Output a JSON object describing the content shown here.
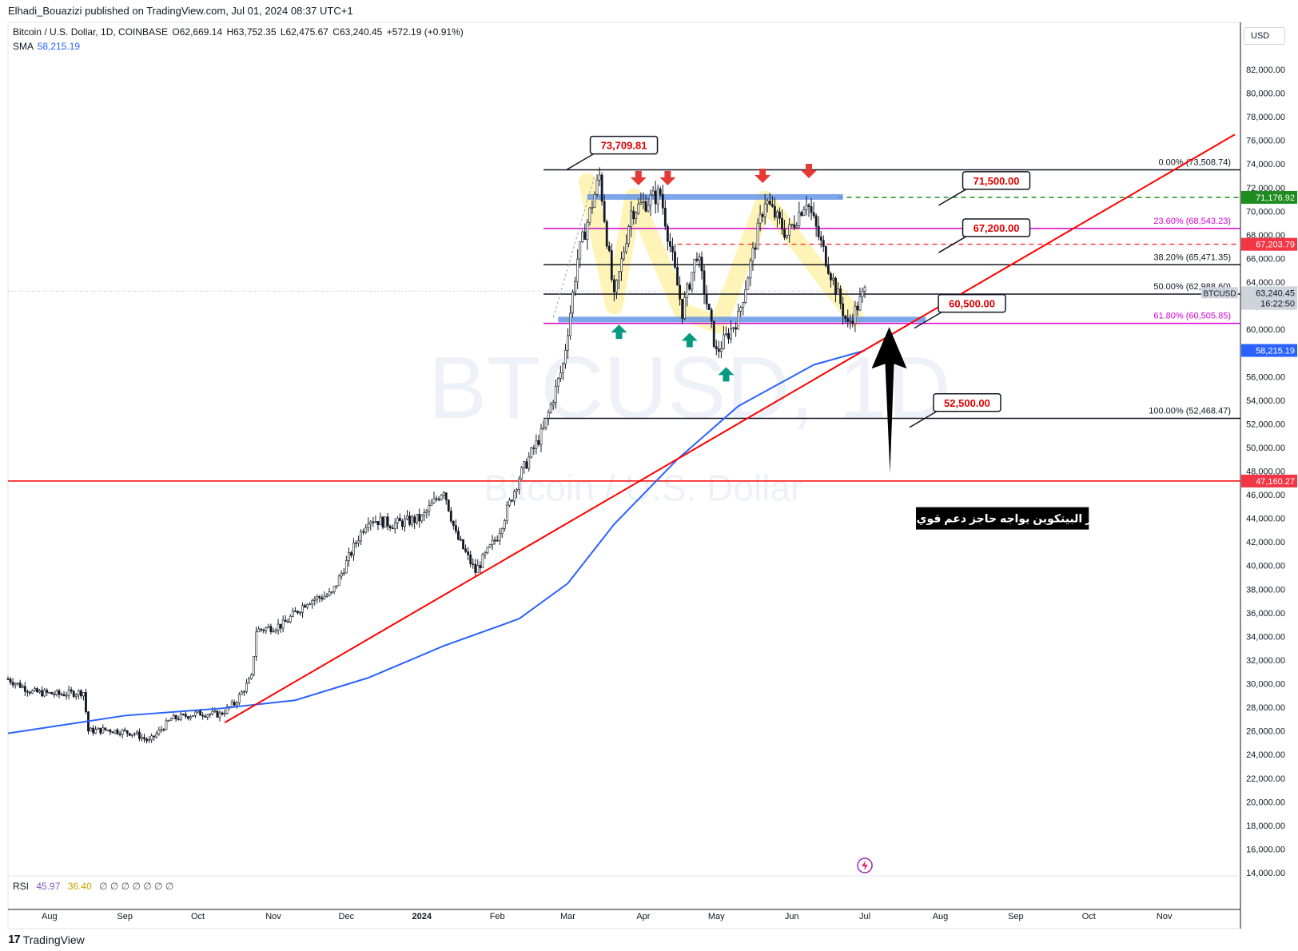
{
  "header": {
    "publisher": "Elhadi_Bouazizi published on TradingView.com, Jul 01, 2024 08:37 UTC+1"
  },
  "legend": {
    "symbol": "Bitcoin / U.S. Dollar, 1D, COINBASE",
    "open": "O62,669.14",
    "high": "H63,752.35",
    "low": "L62,475.67",
    "close": "C63,240.45",
    "change": "+572.19 (+0.91%)",
    "sma_label": "SMA",
    "sma_value": "58,215.19"
  },
  "currency_button": "USD",
  "rsi": {
    "label": "RSI",
    "v1": "45.97",
    "v2": "36.40",
    "empties": "∅ ∅ ∅ ∅ ∅ ∅ ∅"
  },
  "footer": {
    "brand": "TradingView",
    "brand_mark": "17"
  },
  "colors": {
    "up": "#089981",
    "down": "#131722",
    "sma": "#2962ff",
    "trend": "#ff0000",
    "fib_pink": "#d500d5",
    "zone": "#5b8ee6",
    "yellow": "#fff3b0"
  },
  "chart_data": {
    "type": "candlestick",
    "symbol_watermark": "BTCUSD, 1D",
    "watermark_sub": "Bitcoin / U.S. Dollar",
    "ylim": [
      14000,
      84000
    ],
    "x_ticks": [
      "Aug",
      "Sep",
      "Oct",
      "Nov",
      "Dec",
      "2024",
      "Feb",
      "Mar",
      "Apr",
      "May",
      "Jun",
      "Jul",
      "Aug",
      "Sep",
      "Oct",
      "Nov"
    ],
    "y_ticks": [
      "82,000.00",
      "80,000.00",
      "78,000.00",
      "76,000.00",
      "74,000.00",
      "72,000.00",
      "70,000.00",
      "68,000.00",
      "66,000.00",
      "64,000.00",
      "62,000.00",
      "60,000.00",
      "58,000.00",
      "56,000.00",
      "54,000.00",
      "52,000.00",
      "50,000.00",
      "48,000.00",
      "46,000.00",
      "44,000.00",
      "42,000.00",
      "40,000.00",
      "38,000.00",
      "36,000.00",
      "34,000.00",
      "32,000.00",
      "30,000.00",
      "28,000.00",
      "26,000.00",
      "24,000.00",
      "22,000.00",
      "20,000.00",
      "18,000.00",
      "16,000.00",
      "14,000.00"
    ],
    "y_tick_values": [
      82000,
      80000,
      78000,
      76000,
      74000,
      72000,
      70000,
      68000,
      66000,
      64000,
      62000,
      60000,
      58000,
      56000,
      54000,
      52000,
      50000,
      48000,
      46000,
      44000,
      42000,
      40000,
      38000,
      36000,
      34000,
      32000,
      30000,
      28000,
      26000,
      24000,
      22000,
      20000,
      18000,
      16000,
      14000
    ],
    "price_path": [
      [
        "2023-07-15",
        30400
      ],
      [
        "2023-07-25",
        29300
      ],
      [
        "2023-08-05",
        29100
      ],
      [
        "2023-08-15",
        29300
      ],
      [
        "2023-08-17",
        26000
      ],
      [
        "2023-08-25",
        26100
      ],
      [
        "2023-09-05",
        25800
      ],
      [
        "2023-09-11",
        25100
      ],
      [
        "2023-09-20",
        27000
      ],
      [
        "2023-10-01",
        27500
      ],
      [
        "2023-10-10",
        27400
      ],
      [
        "2023-10-16",
        28300
      ],
      [
        "2023-10-23",
        30500
      ],
      [
        "2023-10-25",
        34500
      ],
      [
        "2023-11-05",
        35000
      ],
      [
        "2023-11-15",
        37000
      ],
      [
        "2023-11-25",
        37600
      ],
      [
        "2023-12-05",
        42000
      ],
      [
        "2023-12-10",
        44000
      ],
      [
        "2023-12-20",
        43500
      ],
      [
        "2024-01-01",
        44000
      ],
      [
        "2024-01-10",
        46500
      ],
      [
        "2024-01-15",
        42600
      ],
      [
        "2024-01-23",
        39500
      ],
      [
        "2024-02-01",
        42500
      ],
      [
        "2024-02-10",
        47500
      ],
      [
        "2024-02-20",
        51500
      ],
      [
        "2024-02-28",
        57000
      ],
      [
        "2024-03-05",
        66000
      ],
      [
        "2024-03-14",
        73000
      ],
      [
        "2024-03-20",
        62500
      ],
      [
        "2024-03-27",
        70000
      ],
      [
        "2024-04-08",
        71500
      ],
      [
        "2024-04-17",
        61500
      ],
      [
        "2024-04-23",
        66500
      ],
      [
        "2024-05-01",
        58000
      ],
      [
        "2024-05-10",
        61000
      ],
      [
        "2024-05-21",
        71000
      ],
      [
        "2024-05-30",
        68000
      ],
      [
        "2024-06-07",
        71000
      ],
      [
        "2024-06-15",
        66000
      ],
      [
        "2024-06-24",
        60300
      ],
      [
        "2024-07-01",
        63240
      ]
    ],
    "sma_path": [
      [
        "2023-07-15",
        25800
      ],
      [
        "2023-09-01",
        27300
      ],
      [
        "2023-10-10",
        27900
      ],
      [
        "2023-11-10",
        28600
      ],
      [
        "2023-12-10",
        30500
      ],
      [
        "2024-01-10",
        33200
      ],
      [
        "2024-02-10",
        35500
      ],
      [
        "2024-03-01",
        38500
      ],
      [
        "2024-03-20",
        43500
      ],
      [
        "2024-04-15",
        49000
      ],
      [
        "2024-05-10",
        53500
      ],
      [
        "2024-06-10",
        57000
      ],
      [
        "2024-07-01",
        58215
      ]
    ],
    "trend_line": [
      [
        "2023-10-12",
        26700
      ],
      [
        "2024-11-30",
        76500
      ]
    ],
    "horizontal_lines": [
      {
        "price": 73508.74,
        "from": "2024-02-20",
        "color": "#131722",
        "label": "0.00% (73,508.74)"
      },
      {
        "price": 68543.23,
        "from": "2024-02-20",
        "color": "#d500d5",
        "label": "23.60% (68,543.23)"
      },
      {
        "price": 65471.35,
        "from": "2024-02-20",
        "color": "#131722",
        "label": "38.20% (65,471.35)"
      },
      {
        "price": 62988.6,
        "from": "2024-02-20",
        "color": "#131722",
        "label": "50.00% (62,988.60)"
      },
      {
        "price": 60505.85,
        "from": "2024-02-20",
        "color": "#d500d5",
        "label": "61.80% (60,505.85)"
      },
      {
        "price": 52468.47,
        "from": "2024-02-20",
        "color": "#131722",
        "label": "100.00% (52,468.47)"
      },
      {
        "price": 47160.27,
        "from": "2023-07-15",
        "color": "#ff0000",
        "label": ""
      }
    ],
    "dashed_lines": [
      {
        "price": 71176.92,
        "from": "2024-06-20",
        "color": "#1e8c1e"
      },
      {
        "price": 67203.79,
        "from": "2024-04-15",
        "color": "#ff3b3b"
      }
    ],
    "zones": [
      {
        "price": 71176.92,
        "from": "2024-03-09",
        "to": "2024-06-22"
      },
      {
        "price": 60800,
        "from": "2024-02-26",
        "to": "2024-07-26"
      }
    ],
    "callouts": [
      {
        "text": "73,709.81",
        "date": "2024-03-24",
        "price": 75600
      },
      {
        "text": "71,500.00",
        "date": "2024-08-24",
        "price": 72600
      },
      {
        "text": "67,200.00",
        "date": "2024-08-24",
        "price": 68600
      },
      {
        "text": "60,500.00",
        "date": "2024-08-14",
        "price": 62200
      },
      {
        "text": "52,500.00",
        "date": "2024-08-12",
        "price": 53800
      }
    ],
    "price_scale_tags": [
      {
        "text": "71,176.92",
        "price": 71176.92,
        "bg": "#1e8c1e",
        "fg": "#ffffff"
      },
      {
        "text": "67,203.79",
        "price": 67203.79,
        "bg": "#f23645",
        "fg": "#ffffff"
      },
      {
        "text": "63,240.45",
        "price": 63100,
        "bg": "#cfd3da",
        "fg": "#131722"
      },
      {
        "text": "16:22:50",
        "price": 62200,
        "bg": "#cfd3da",
        "fg": "#131722"
      },
      {
        "text": "58,215.19",
        "price": 58215.19,
        "bg": "#2962ff",
        "fg": "#ffffff"
      },
      {
        "text": "47,160.27",
        "price": 47160.27,
        "bg": "#f23645",
        "fg": "#ffffff"
      }
    ],
    "btc_tag": "BTCUSD",
    "down_arrows": [
      [
        "2024-03-30",
        72600
      ],
      [
        "2024-04-11",
        72600
      ],
      [
        "2024-05-20",
        72800
      ],
      [
        "2024-06-08",
        73200
      ]
    ],
    "up_arrows": [
      [
        "2024-03-22",
        60000
      ],
      [
        "2024-04-20",
        59300
      ],
      [
        "2024-05-05",
        56400
      ]
    ],
    "annotation_text": "سعر البيتكوين يواجه حاجز دعم قوي جدا",
    "annotation_box": {
      "from": "2024-07-22",
      "to": "2024-10-01",
      "price": 44000
    },
    "big_arrow": {
      "date": "2024-07-11",
      "tip": 60200,
      "base": 47800
    }
  }
}
